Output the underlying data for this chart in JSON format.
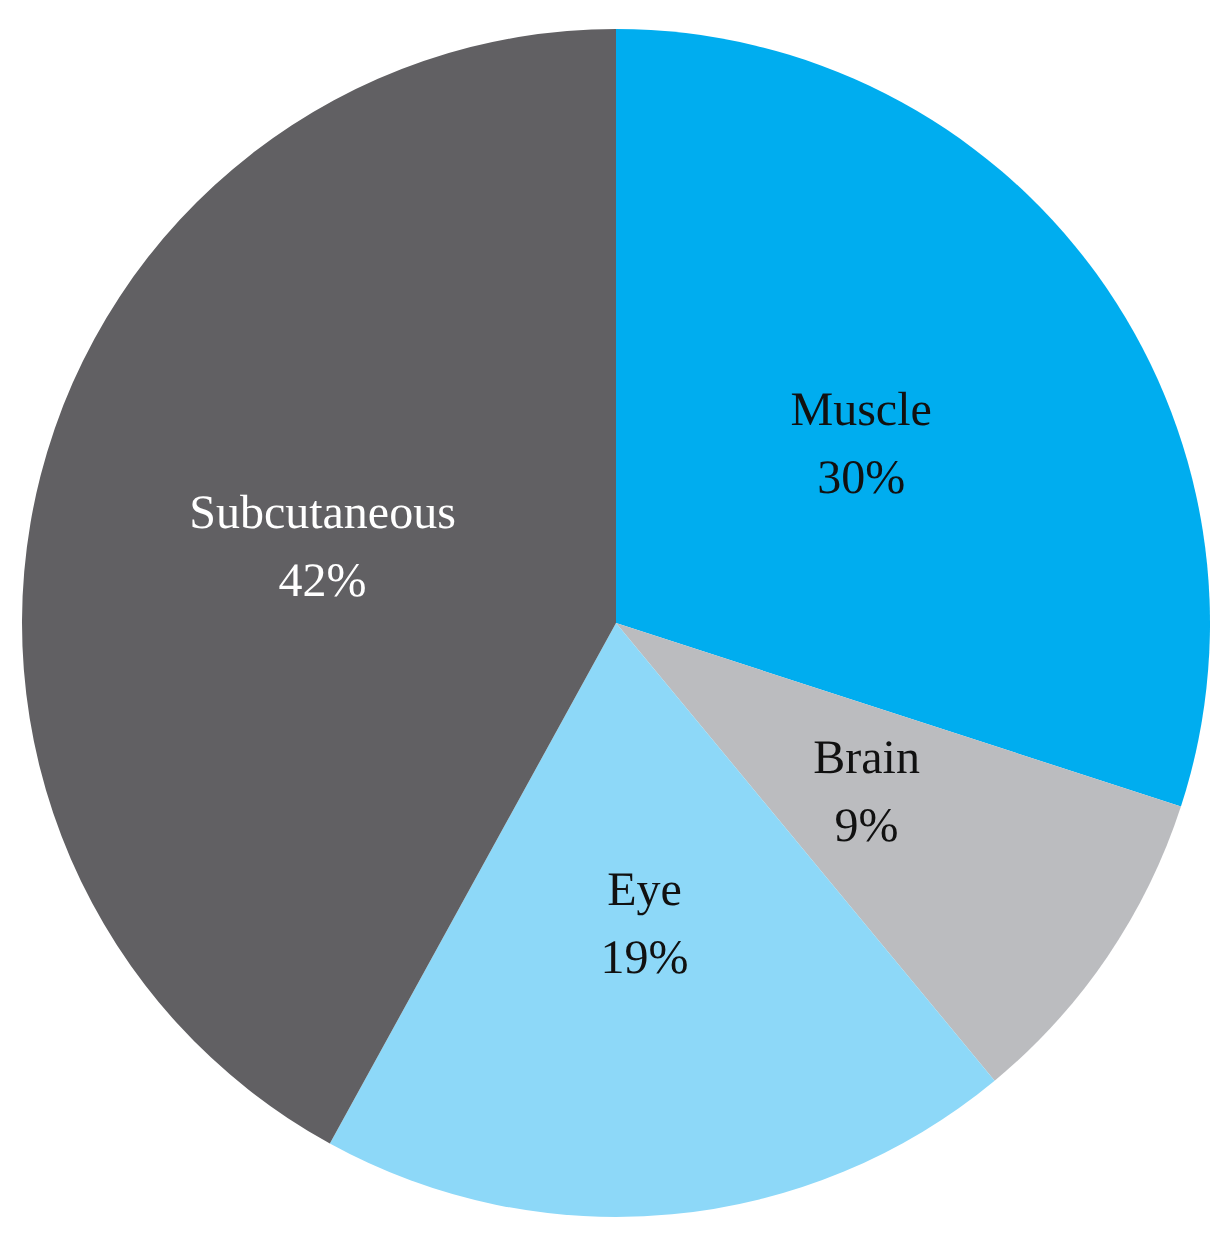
{
  "chart_data": {
    "type": "pie",
    "categories": [
      "Muscle",
      "Brain",
      "Eye",
      "Subcutaneous"
    ],
    "values": [
      30,
      9,
      19,
      42
    ],
    "value_labels": [
      "30%",
      "9%",
      "19%",
      "42%"
    ],
    "colors": [
      "#00adef",
      "#bbbcbf",
      "#8dd8f8",
      "#616063"
    ],
    "legend": false
  }
}
